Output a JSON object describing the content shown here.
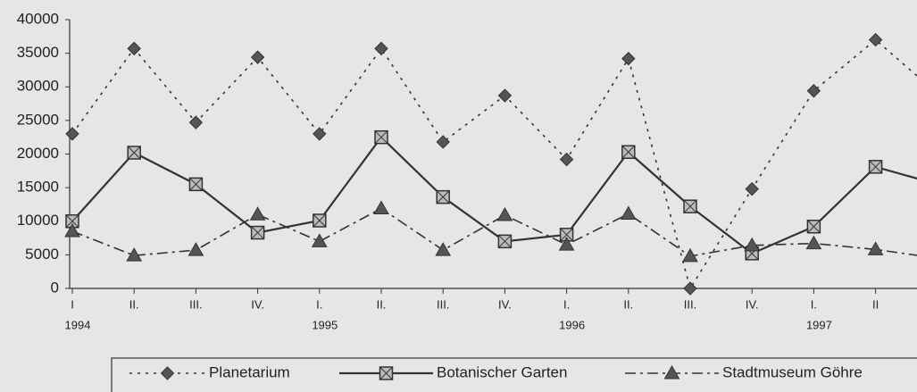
{
  "chart_data": {
    "type": "line",
    "categories": [
      "I",
      "II.",
      "III.",
      "IV.",
      "I.",
      "II.",
      "III.",
      "IV.",
      "I.",
      "II.",
      "III.",
      "IV.",
      "I.",
      "II",
      null
    ],
    "year_labels": [
      "1994",
      null,
      null,
      null,
      "1995",
      null,
      null,
      null,
      "1996",
      null,
      null,
      null,
      "1997",
      null,
      null
    ],
    "series": [
      {
        "name": "Planetarium",
        "color": "#333333",
        "linestyle": "dotted",
        "marker": "diamond",
        "values": [
          23000,
          35700,
          24700,
          34400,
          23000,
          35700,
          21800,
          28700,
          19200,
          34200,
          0,
          14800,
          29400,
          37000,
          29000
        ]
      },
      {
        "name": "Botanischer Garten",
        "color": "#333333",
        "linestyle": "solid",
        "marker": "crossed-square",
        "values": [
          10000,
          20200,
          15500,
          8300,
          10100,
          22500,
          13600,
          7000,
          8000,
          20300,
          12200,
          5200,
          9200,
          18100,
          15500
        ]
      },
      {
        "name": "Stadtmuseum Göhre",
        "color": "#333333",
        "linestyle": "dashdot",
        "marker": "triangle",
        "values": [
          8500,
          4900,
          5700,
          11000,
          7000,
          11900,
          5700,
          10900,
          6500,
          11100,
          4800,
          6400,
          6700,
          5800,
          4500
        ]
      }
    ],
    "ylim": [
      0,
      40000
    ],
    "yticks": [
      0,
      5000,
      10000,
      15000,
      20000,
      25000,
      30000,
      35000,
      40000
    ],
    "grid": false,
    "legend": "bottom"
  }
}
